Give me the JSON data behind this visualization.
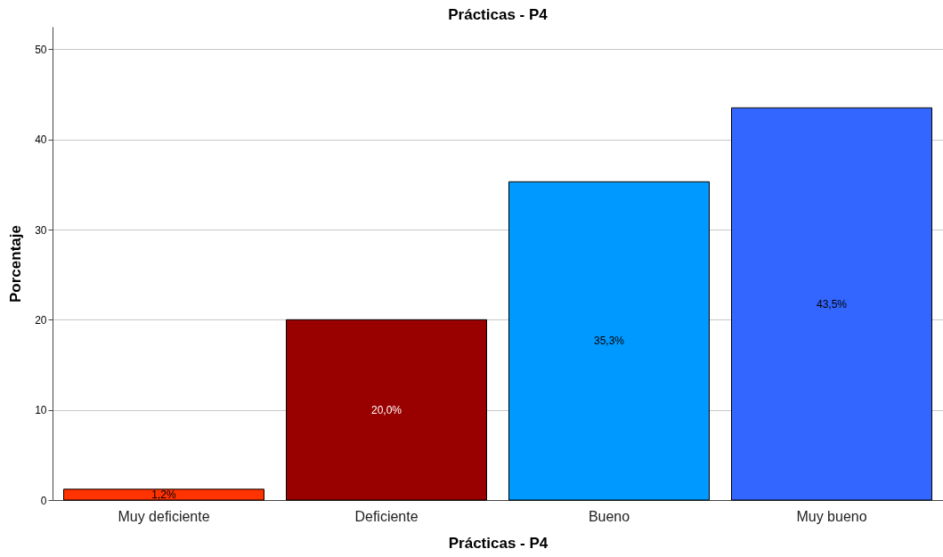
{
  "chart_data": {
    "type": "bar",
    "title": "Prácticas - P4",
    "xlabel": "Prácticas - P4",
    "ylabel": "Porcentaje",
    "categories": [
      "Muy deficiente",
      "Deficiente",
      "Bueno",
      "Muy bueno"
    ],
    "values": [
      1.2,
      20.0,
      35.3,
      43.5
    ],
    "colors": [
      "#ff3300",
      "#990000",
      "#0099ff",
      "#3366ff"
    ],
    "value_labels": [
      "1,2%",
      "20,0%",
      "35,3%",
      "43,5%"
    ],
    "ylim": [
      0,
      52.5
    ],
    "yticks": [
      0,
      10,
      20,
      30,
      40,
      50
    ],
    "grid": "y"
  }
}
